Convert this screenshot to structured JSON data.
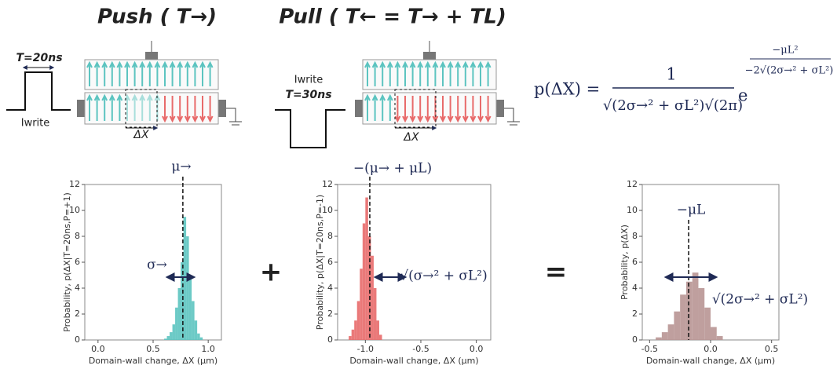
{
  "figure": {
    "push_title": "Push ( T→)",
    "pull_title": "Pull ( T← = T→ + TL)",
    "pulse_push": "T=20ns",
    "pulse_pull": "T=30ns",
    "iwrite_push": "Iwrite",
    "iwrite_pull": "Iwrite",
    "dx_push": "ΔX",
    "dx_pull": "ΔX",
    "formula_lhs": "p(ΔX) =",
    "formula_num": "1",
    "formula_den": "√(2σ→² + σL²)√(2π)",
    "formula_base": "e",
    "formula_exp_num": "−μL²",
    "formula_exp_den": "−2√(2σ→² + σL²)",
    "plus": "+",
    "equals": "="
  },
  "chart_data": [
    {
      "type": "histogram",
      "color": "#5cc4c0",
      "xlabel": "Domain-wall change, ΔX (μm)",
      "ylabel": "Probability, p(ΔX|T=20ns,P=+1)",
      "bins": [
        0.6,
        0.625,
        0.65,
        0.675,
        0.7,
        0.725,
        0.75,
        0.775,
        0.8,
        0.825,
        0.85,
        0.875,
        0.9,
        0.925,
        0.95
      ],
      "values": [
        0.1,
        0.3,
        0.6,
        1.2,
        2.5,
        4,
        6,
        9.5,
        8,
        5,
        3,
        1.5,
        0.5,
        0.2
      ],
      "xlim": [
        -0.12,
        1.12
      ],
      "ylim": [
        0,
        12
      ],
      "xticks": [
        {
          "value": 0,
          "label": "0.0"
        },
        0.5,
        {
          "value": 1,
          "label": "1.0"
        }
      ],
      "yticks": [
        0,
        2,
        4,
        6,
        8,
        10,
        12
      ],
      "mean": 0.77,
      "annotations": [
        "μ→",
        "σ→"
      ]
    },
    {
      "type": "histogram",
      "color": "#e86a6a",
      "xlabel": "Domain-wall change, ΔX (μm)",
      "ylabel": "Probability, p(ΔX|T=20ns,P=-1)",
      "bins": [
        -1.15,
        -1.125,
        -1.1,
        -1.075,
        -1.05,
        -1.025,
        -1.0,
        -0.975,
        -0.95,
        -0.925,
        -0.9,
        -0.875,
        -0.85
      ],
      "values": [
        0.3,
        0.8,
        1.5,
        3,
        5.5,
        9,
        11,
        8,
        6.5,
        4,
        1.5,
        0.4
      ],
      "xlim": [
        -1.25,
        0.13
      ],
      "ylim": [
        0,
        12
      ],
      "xticks": [
        {
          "value": -1,
          "label": "-1.0"
        },
        -0.5,
        {
          "value": 0,
          "label": "0.0"
        }
      ],
      "yticks": [
        0,
        2,
        4,
        6,
        8,
        10,
        12
      ],
      "mean": -0.96,
      "annotations": [
        "−(μ→ + μL)",
        "√(σ→² + σL²)"
      ]
    },
    {
      "type": "histogram",
      "color": "#b89593",
      "xlabel": "Domain-wall change, ΔX (μm)",
      "ylabel": "Probability, p(ΔX)",
      "bins": [
        -0.45,
        -0.4,
        -0.35,
        -0.3,
        -0.25,
        -0.2,
        -0.15,
        -0.1,
        -0.05,
        0,
        0.05,
        0.1
      ],
      "values": [
        0.2,
        0.6,
        1.2,
        2.2,
        3.5,
        4.5,
        5.2,
        4,
        2.5,
        1,
        0.3
      ],
      "xlim": [
        -0.56,
        0.56
      ],
      "ylim": [
        0,
        12
      ],
      "xticks": [
        -0.5,
        {
          "value": 0,
          "label": "0.0"
        },
        0.5
      ],
      "yticks": [
        0,
        2,
        4,
        6,
        8,
        10,
        12
      ],
      "mean": -0.18,
      "annotations": [
        "−μL",
        "√(2σ→² + σL²)"
      ]
    }
  ]
}
